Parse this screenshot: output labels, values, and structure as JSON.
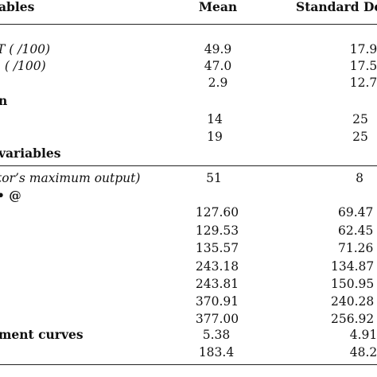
{
  "header": {
    "variables": "ables",
    "mean": "Mean",
    "std": "Standard De"
  },
  "rows": [
    {
      "label": "T ( /100)",
      "mean": "49.9",
      "std": "17.9"
    },
    {
      "label": "’ ( /100)",
      "mean": "47.0",
      "std": "17.5"
    },
    {
      "label": "",
      "mean": "2.9",
      "std": "12.7"
    },
    {
      "label": "n",
      "mean": "",
      "std": ""
    },
    {
      "label": "",
      "mean": "14",
      "std": "25"
    },
    {
      "label": "",
      "mean": "19",
      "std": "25"
    },
    {
      "label": "variables",
      "mean": "",
      "std": ""
    },
    {
      "label": "tor’s maximum output)",
      "mean": "51",
      "std": "8"
    },
    {
      "label": "• @",
      "mean": "",
      "std": ""
    },
    {
      "label": "",
      "mean": "127.60",
      "std": "69.47"
    },
    {
      "label": "",
      "mean": "129.53",
      "std": "62.45"
    },
    {
      "label": "",
      "mean": "135.57",
      "std": "71.26"
    },
    {
      "label": "",
      "mean": "243.18",
      "std": "134.87"
    },
    {
      "label": "",
      "mean": "243.81",
      "std": "150.95"
    },
    {
      "label": "",
      "mean": "370.91",
      "std": "240.28"
    },
    {
      "label": "",
      "mean": "377.00",
      "std": "256.92"
    },
    {
      "label": "ment curves",
      "mean": "5.38",
      "std": "4.91"
    },
    {
      "label": "",
      "mean": "183.4",
      "std": "48.2"
    }
  ]
}
